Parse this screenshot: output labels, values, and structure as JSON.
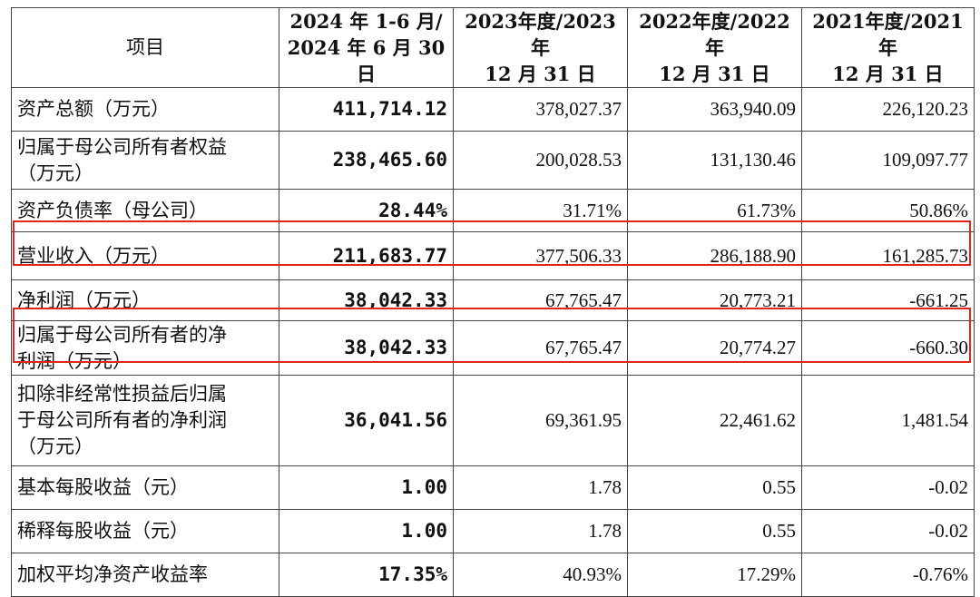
{
  "table": {
    "headers": [
      [
        "项目"
      ],
      [
        "2024 年 1-6 月/",
        "2024 年 6 月 30 日"
      ],
      [
        "2023年度/2023年",
        "12 月 31 日"
      ],
      [
        "2022年度/2022年",
        "12 月 31 日"
      ],
      [
        "2021年度/2021年",
        "12 月 31 日"
      ]
    ],
    "rows": [
      {
        "label": [
          "资产总额（万元）"
        ],
        "values": [
          "411,714.12",
          "378,027.37",
          "363,940.09",
          "226,120.23"
        ]
      },
      {
        "label": [
          "归属于母公司所有者权益",
          "（万元）"
        ],
        "values": [
          "238,465.60",
          "200,028.53",
          "131,130.46",
          "109,097.77"
        ]
      },
      {
        "label": [
          "资产负债率（母公司）"
        ],
        "values": [
          "28.44%",
          "31.71%",
          "61.73%",
          "50.86%"
        ]
      },
      {
        "label": [
          "营业收入（万元）"
        ],
        "values": [
          "211,683.77",
          "377,506.33",
          "286,188.90",
          "161,285.73"
        ]
      },
      {
        "label": [
          "净利润（万元）"
        ],
        "values": [
          "38,042.33",
          "67,765.47",
          "20,773.21",
          "-661.25"
        ]
      },
      {
        "label": [
          "归属于母公司所有者的净",
          "利润（万元）"
        ],
        "values": [
          "38,042.33",
          "67,765.47",
          "20,774.27",
          "-660.30"
        ]
      },
      {
        "label": [
          "扣除非经常性损益后归属",
          "于母公司所有者的净利润",
          "（万元）"
        ],
        "values": [
          "36,041.56",
          "69,361.95",
          "22,461.62",
          "1,481.54"
        ]
      },
      {
        "label": [
          "基本每股收益（元）"
        ],
        "values": [
          "1.00",
          "1.78",
          "0.55",
          "-0.02"
        ]
      },
      {
        "label": [
          "稀释每股收益（元）"
        ],
        "values": [
          "1.00",
          "1.78",
          "0.55",
          "-0.02"
        ]
      },
      {
        "label": [
          "加权平均净资产收益率"
        ],
        "values": [
          "17.35%",
          "40.93%",
          "17.29%",
          "-0.76%"
        ]
      }
    ]
  },
  "highlight_color": "#e0251b"
}
